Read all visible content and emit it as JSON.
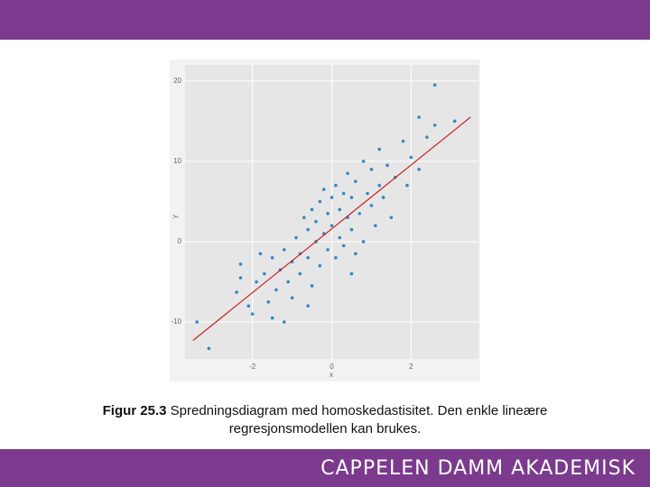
{
  "chart_data": {
    "type": "scatter",
    "xlabel": "x",
    "ylabel": "y",
    "xlim": [
      -3.7,
      3.7
    ],
    "ylim": [
      -14.6,
      22
    ],
    "xticks": [
      -2,
      0,
      2
    ],
    "yticks": [
      -10,
      0,
      10,
      20
    ],
    "grid": true,
    "color": "#2f8ac4",
    "x": [
      -3.1,
      -3.4,
      -2.3,
      -2.3,
      -2.4,
      -2.1,
      -2.0,
      -1.9,
      -1.7,
      -1.6,
      -1.5,
      -1.5,
      -1.4,
      -1.3,
      -1.2,
      -1.2,
      -1.1,
      -1.0,
      -1.0,
      -0.9,
      -0.8,
      -0.8,
      -0.7,
      -0.6,
      -0.6,
      -0.5,
      -0.5,
      -0.4,
      -0.4,
      -0.3,
      -0.3,
      -0.2,
      -0.2,
      -0.1,
      -0.1,
      0.0,
      0.0,
      0.1,
      0.1,
      0.2,
      0.2,
      0.3,
      0.3,
      0.4,
      0.4,
      0.5,
      0.5,
      0.6,
      0.6,
      0.7,
      0.8,
      0.8,
      0.9,
      1.0,
      1.0,
      1.1,
      1.2,
      1.2,
      1.3,
      1.4,
      1.5,
      1.6,
      1.8,
      1.9,
      2.0,
      2.2,
      2.4,
      2.6,
      2.2,
      2.6,
      3.1,
      0.5,
      -0.6,
      -1.8
    ],
    "values": [
      -13.3,
      -10.0,
      -2.8,
      -4.5,
      -6.3,
      -8.0,
      -9.0,
      -5.0,
      -4.0,
      -7.5,
      -2.0,
      -9.5,
      -6.0,
      -3.5,
      -1.0,
      -10.0,
      -5.0,
      -2.5,
      -7.0,
      0.5,
      -4.0,
      -1.5,
      3.0,
      -2.0,
      1.5,
      -5.5,
      4.0,
      0.0,
      2.5,
      -3.0,
      5.0,
      1.0,
      6.5,
      -1.0,
      3.5,
      2.0,
      5.5,
      -2.0,
      7.0,
      0.5,
      4.0,
      6.0,
      -0.5,
      3.0,
      8.5,
      1.5,
      5.5,
      -1.5,
      7.5,
      3.5,
      10.0,
      0.0,
      6.0,
      4.5,
      9.0,
      2.0,
      7.0,
      11.5,
      5.5,
      9.5,
      3.0,
      8.0,
      12.5,
      7.0,
      10.5,
      9.0,
      13.0,
      14.5,
      15.5,
      19.5,
      15.0,
      -4.0,
      -8.0,
      -1.5
    ],
    "regression_line": {
      "x": [
        -3.5,
        3.5
      ],
      "values": [
        -12.3,
        15.5
      ],
      "color": "#cc2222"
    }
  },
  "caption": {
    "label": "Figur 25.3",
    "text": "Spredningsdiagram med homoskedastisitet. Den enkle lineære regresjonsmodellen kan brukes."
  },
  "footer": {
    "brand": "CAPPELEN DAMM AKADEMISK"
  }
}
